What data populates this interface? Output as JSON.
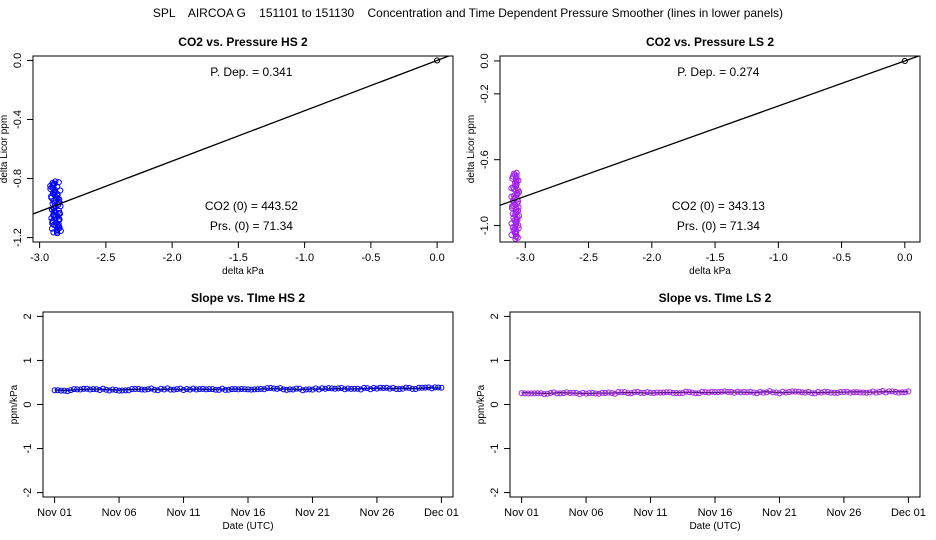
{
  "page_title": "SPL    AIRCOA G    151101 to 151130    Concentration and Time Dependent Pressure Smoother (lines in lower panels)",
  "colors": {
    "hs": "#0000ff",
    "ls": "#a020f0",
    "line": "#000000"
  },
  "chart_data": [
    {
      "id": "p1",
      "type": "scatter",
      "title": "CO2 vs. Pressure HS 2",
      "xlabel": "delta kPa",
      "ylabel": "delta Licor ppm",
      "xlim": [
        -3.05,
        0.12
      ],
      "ylim": [
        -1.23,
        0.03
      ],
      "xticks": [
        -3.0,
        -2.5,
        -2.0,
        -1.5,
        -1.0,
        -0.5,
        0.0
      ],
      "xtick_labels": [
        "-3.0",
        "-2.5",
        "-2.0",
        "-1.5",
        "-1.0",
        "-0.5",
        "0.0"
      ],
      "yticks": [
        -1.2,
        -0.8,
        -0.4,
        0.0
      ],
      "ytick_labels": [
        "-1.2",
        "-0.8",
        "-0.4",
        "0.0"
      ],
      "series_color": "hs",
      "line": {
        "slope": 0.341,
        "intercept": 0.0
      },
      "origin_point": [
        0.0,
        0.0
      ],
      "cluster": {
        "x_center": -2.88,
        "x_spread": 0.04,
        "y_min": -1.17,
        "y_max": -0.82,
        "n": 70
      },
      "annotations": {
        "pdep": "P. Dep. =  0.341",
        "co2": "CO2 (0) =  443.52",
        "prs": "Prs. (0) =  71.34"
      }
    },
    {
      "id": "p2",
      "type": "scatter",
      "title": "CO2 vs. Pressure LS 2",
      "xlabel": "delta kPa",
      "ylabel": "delta Licor ppm",
      "xlim": [
        -3.2,
        0.12
      ],
      "ylim": [
        -1.1,
        0.03
      ],
      "xticks": [
        -3.0,
        -2.5,
        -2.0,
        -1.5,
        -1.0,
        -0.5,
        0.0
      ],
      "xtick_labels": [
        "-3.0",
        "-2.5",
        "-2.0",
        "-1.5",
        "-1.0",
        "-0.5",
        "0.0"
      ],
      "yticks": [
        -1.0,
        -0.6,
        -0.2,
        0.0
      ],
      "ytick_labels": [
        "-1.0",
        "-0.6",
        "-0.2",
        "0.0"
      ],
      "series_color": "ls",
      "line": {
        "slope": 0.274,
        "intercept": 0.0
      },
      "origin_point": [
        0.0,
        0.0
      ],
      "cluster": {
        "x_center": -3.08,
        "x_spread": 0.03,
        "y_min": -1.08,
        "y_max": -0.68,
        "n": 70
      },
      "annotations": {
        "pdep": "P. Dep. =  0.274",
        "co2": "CO2 (0) =  343.13",
        "prs": "Prs. (0) =  71.34"
      }
    },
    {
      "id": "p3",
      "type": "line",
      "title": "Slope vs. TIme HS 2",
      "xlabel": "Date (UTC)",
      "ylabel": "ppm/kPa",
      "xlim": [
        -0.9,
        30.9
      ],
      "ylim": [
        -2.1,
        2.1
      ],
      "xticks": [
        0,
        5,
        10,
        15,
        20,
        25,
        30
      ],
      "xtick_labels": [
        "Nov 01",
        "Nov 06",
        "Nov 11",
        "Nov 16",
        "Nov 21",
        "Nov 26",
        "Dec 01"
      ],
      "yticks": [
        -2,
        -1,
        0,
        1,
        2
      ],
      "ytick_labels": [
        "-2",
        "-1",
        "0",
        "1",
        "2"
      ],
      "series_color": "hs",
      "x_days": [
        0,
        1,
        2,
        3,
        4,
        5,
        6,
        7,
        8,
        9,
        10,
        11,
        12,
        13,
        14,
        15,
        16,
        17,
        18,
        19,
        20,
        21,
        22,
        23,
        24,
        25,
        26,
        27,
        28,
        29,
        30
      ],
      "values": [
        0.33,
        0.32,
        0.34,
        0.35,
        0.34,
        0.33,
        0.34,
        0.35,
        0.34,
        0.35,
        0.34,
        0.35,
        0.34,
        0.35,
        0.35,
        0.34,
        0.35,
        0.36,
        0.35,
        0.34,
        0.35,
        0.35,
        0.36,
        0.35,
        0.36,
        0.37,
        0.36,
        0.37,
        0.36,
        0.38,
        0.37
      ]
    },
    {
      "id": "p4",
      "type": "line",
      "title": "Slope vs. TIme LS 2",
      "xlabel": "Date (UTC)",
      "ylabel": "ppm/kPa",
      "xlim": [
        -0.9,
        30.9
      ],
      "ylim": [
        -2.1,
        2.1
      ],
      "xticks": [
        0,
        5,
        10,
        15,
        20,
        25,
        30
      ],
      "xtick_labels": [
        "Nov 01",
        "Nov 06",
        "Nov 11",
        "Nov 16",
        "Nov 21",
        "Nov 26",
        "Dec 01"
      ],
      "yticks": [
        -2,
        -1,
        0,
        1,
        2
      ],
      "ytick_labels": [
        "-2",
        "-1",
        "0",
        "1",
        "2"
      ],
      "series_color": "ls",
      "x_days": [
        0,
        1,
        2,
        3,
        4,
        5,
        6,
        7,
        8,
        9,
        10,
        11,
        12,
        13,
        14,
        15,
        16,
        17,
        18,
        19,
        20,
        21,
        22,
        23,
        24,
        25,
        26,
        27,
        28,
        29,
        30
      ],
      "values": [
        0.27,
        0.26,
        0.25,
        0.27,
        0.26,
        0.25,
        0.26,
        0.26,
        0.27,
        0.27,
        0.26,
        0.27,
        0.27,
        0.28,
        0.27,
        0.27,
        0.28,
        0.28,
        0.27,
        0.29,
        0.27,
        0.28,
        0.28,
        0.27,
        0.28,
        0.28,
        0.29,
        0.28,
        0.29,
        0.29,
        0.29
      ]
    }
  ]
}
